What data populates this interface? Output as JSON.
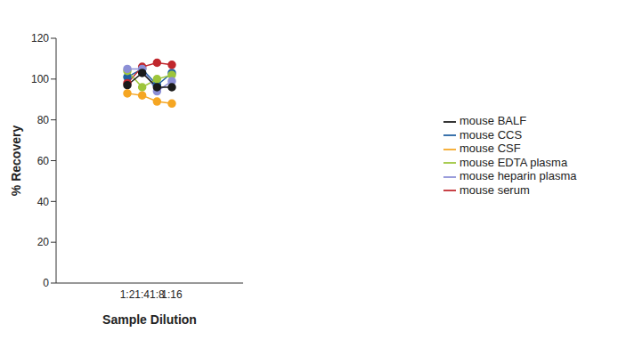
{
  "chart_data": {
    "type": "line",
    "x_label": "Sample Dilution",
    "y_label": "% Recovery",
    "categories": [
      "1:2",
      "1:4",
      "1:8",
      "1:16"
    ],
    "ylim": [
      0,
      120
    ],
    "yticks": [
      0,
      20,
      40,
      60,
      80,
      100,
      120
    ],
    "grid": false,
    "legend": "right",
    "marker": "circle",
    "series": [
      {
        "name": "mouse CCS",
        "color": "#1f5fa0",
        "values": [
          101,
          105,
          97,
          103
        ]
      },
      {
        "name": "mouse serum",
        "color": "#c0272d",
        "values": [
          98,
          106,
          108,
          107
        ]
      },
      {
        "name": "mouse EDTA plasma",
        "color": "#9dc53b",
        "values": [
          104,
          96,
          100,
          102
        ]
      },
      {
        "name": "mouse heparin plasma",
        "color": "#8c8fd6",
        "values": [
          105,
          105,
          94,
          99
        ]
      },
      {
        "name": "mouse BALF",
        "color": "#1a1a1a",
        "values": [
          97,
          103,
          96,
          96
        ]
      },
      {
        "name": "mouse CSF",
        "color": "#f5a623",
        "values": [
          93,
          92,
          89,
          88
        ]
      }
    ]
  }
}
